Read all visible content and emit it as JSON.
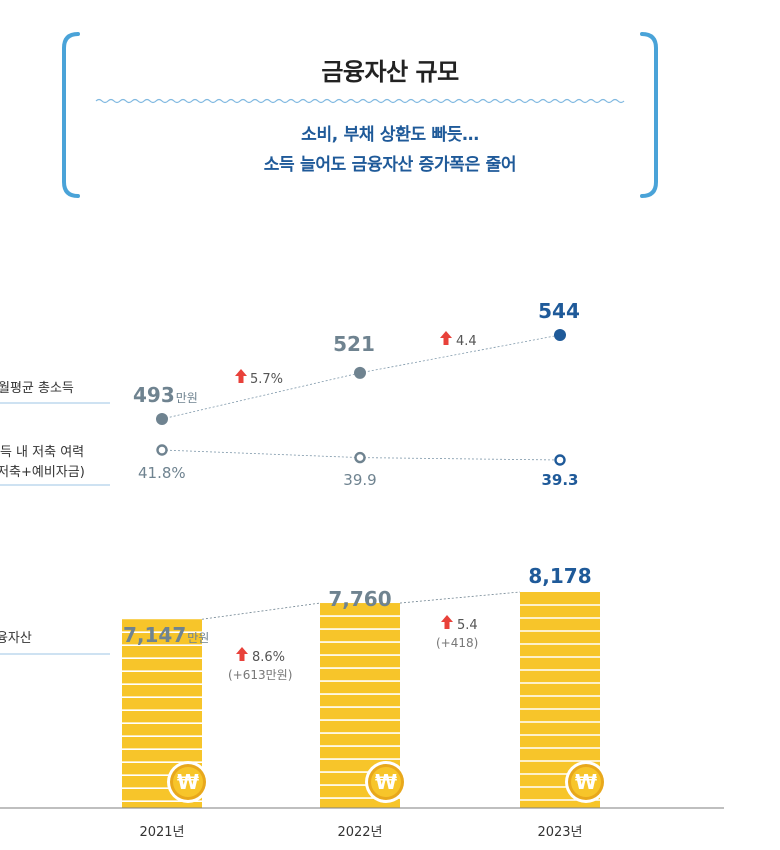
{
  "header": {
    "title": "금융자산 규모",
    "subtitle_line1": "소비, 부채 상환도 빠듯…",
    "subtitle_line2": "소득 늘어도 금융자산 증가폭은 줄어"
  },
  "chart_data": {
    "type": "line+bar",
    "categories": [
      "2021년",
      "2022년",
      "2023년"
    ],
    "series": [
      {
        "name": "월평균 총소득",
        "kind": "line",
        "values": [
          493,
          521,
          544
        ],
        "value_labels": [
          "493",
          "521",
          "544"
        ],
        "first_unit": "만원",
        "changes": [
          "5.7%",
          "4.4"
        ]
      },
      {
        "name": "소득 내 저축 여력",
        "name_line2": "(저축+예비자금)",
        "kind": "line",
        "values": [
          41.8,
          39.9,
          39.3
        ],
        "value_labels": [
          "41.8%",
          "39.9",
          "39.3"
        ]
      },
      {
        "name": "금융자산",
        "kind": "bar",
        "values": [
          7147,
          7760,
          8178
        ],
        "value_labels": [
          "7,147",
          "7,760",
          "8,178"
        ],
        "first_unit": "만원",
        "changes": [
          "8.6%",
          "5.4"
        ],
        "change_details": [
          "(+613만원)",
          "(+418)"
        ]
      }
    ],
    "coin_symbol": "₩",
    "colors": {
      "accent_blue": "#1f5a99",
      "gray": "#6f8390",
      "bracket": "#4aa3d8",
      "coin": "#f7c52a",
      "coin_dark": "#e8a81c",
      "arrow": "#e8413a"
    }
  }
}
